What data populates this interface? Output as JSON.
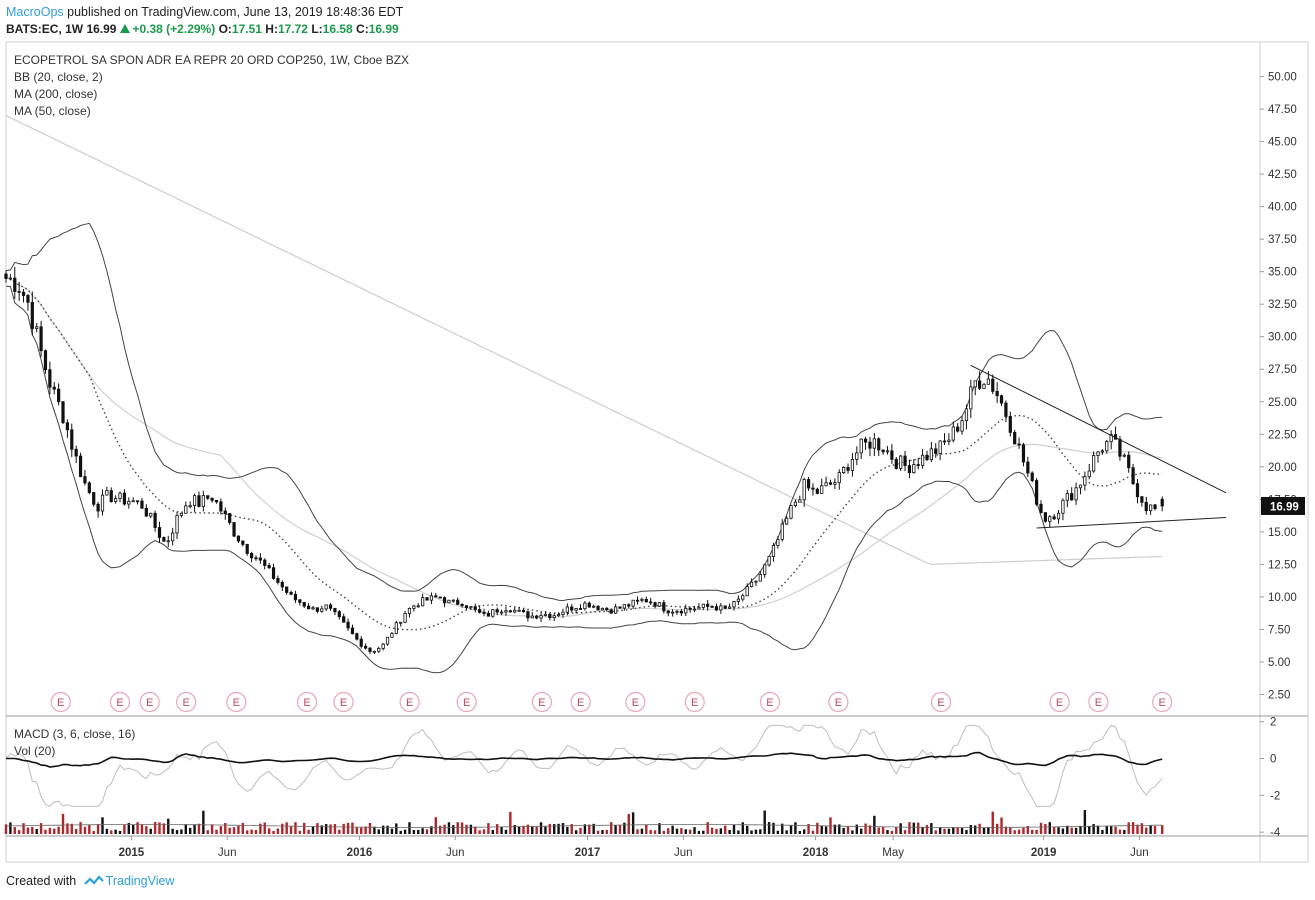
{
  "header": {
    "publisher": "MacroOps",
    "published_text": " published on TradingView.com, June 13, 2019 18:48:36 EDT"
  },
  "quote": {
    "symbol": "BATS:EC, 1W",
    "last": "16.99",
    "change": "+0.38 (+2.29%)",
    "open_label": "O:",
    "open": "17.51",
    "high_label": "H:",
    "high": "17.72",
    "low_label": "L:",
    "low": "16.58",
    "close_label": "C:",
    "close": "16.99",
    "up_color": "#1c9a4c"
  },
  "legend": {
    "title": "ECOPETROL SA SPON ADR EA REPR 20 ORD COP250, 1W, Cboe BZX",
    "bb": "BB (20, close, 2)",
    "ma200": "MA (200, close)",
    "ma50": "MA (50, close)",
    "macd": "MACD (3, 6, close, 16)",
    "vol": "Vol (20)"
  },
  "footer": {
    "created_with": "Created with",
    "brand": "TradingView"
  },
  "chart_data": {
    "type": "candlestick",
    "price_axis": {
      "ticks": [
        "50.00",
        "47.50",
        "45.00",
        "42.50",
        "40.00",
        "37.50",
        "35.00",
        "32.50",
        "30.00",
        "27.50",
        "25.00",
        "22.50",
        "20.00",
        "17.50",
        "15.00",
        "12.50",
        "10.00",
        "7.50",
        "5.00",
        "2.50"
      ],
      "ylim": [
        1.0,
        52.5
      ],
      "last_price_label": "16.99"
    },
    "macd_axis": {
      "ticks": [
        "2",
        "0",
        "-2",
        "-4"
      ],
      "ylim": [
        -4.1,
        2.2
      ]
    },
    "x_axis": {
      "labels": [
        {
          "text": "2015",
          "t": 2015.0
        },
        {
          "text": "Jun",
          "t": 2015.42
        },
        {
          "text": "2016",
          "t": 2016.0
        },
        {
          "text": "Jun",
          "t": 2016.42
        },
        {
          "text": "2017",
          "t": 2017.0
        },
        {
          "text": "Jun",
          "t": 2017.42
        },
        {
          "text": "2018",
          "t": 2018.0
        },
        {
          "text": "May",
          "t": 2018.34
        },
        {
          "text": "2019",
          "t": 2019.0
        },
        {
          "text": "Jun",
          "t": 2019.42
        }
      ],
      "range": [
        2014.45,
        2019.94
      ]
    },
    "price_series": [
      [
        2014.45,
        34.5
      ],
      [
        2014.5,
        34.2
      ],
      [
        2014.55,
        32.5
      ],
      [
        2014.6,
        29.0
      ],
      [
        2014.65,
        26.0
      ],
      [
        2014.7,
        24.0
      ],
      [
        2014.75,
        21.0
      ],
      [
        2014.8,
        18.5
      ],
      [
        2014.85,
        17.0
      ],
      [
        2014.9,
        17.8
      ],
      [
        2014.95,
        17.5
      ],
      [
        2015.0,
        17.4
      ],
      [
        2015.05,
        17.0
      ],
      [
        2015.1,
        15.5
      ],
      [
        2015.15,
        14.0
      ],
      [
        2015.2,
        16.0
      ],
      [
        2015.25,
        17.5
      ],
      [
        2015.3,
        17.2
      ],
      [
        2015.35,
        17.8
      ],
      [
        2015.4,
        16.5
      ],
      [
        2015.45,
        15.0
      ],
      [
        2015.5,
        13.8
      ],
      [
        2015.55,
        13.0
      ],
      [
        2015.6,
        12.0
      ],
      [
        2015.65,
        11.0
      ],
      [
        2015.7,
        10.0
      ],
      [
        2015.75,
        9.5
      ],
      [
        2015.8,
        9.0
      ],
      [
        2015.85,
        9.3
      ],
      [
        2015.9,
        8.5
      ],
      [
        2015.95,
        7.5
      ],
      [
        2016.0,
        6.5
      ],
      [
        2016.05,
        5.8
      ],
      [
        2016.1,
        6.2
      ],
      [
        2016.15,
        7.5
      ],
      [
        2016.2,
        8.8
      ],
      [
        2016.25,
        9.5
      ],
      [
        2016.3,
        9.8
      ],
      [
        2016.35,
        10.0
      ],
      [
        2016.4,
        9.5
      ],
      [
        2016.45,
        9.6
      ],
      [
        2016.5,
        9.0
      ],
      [
        2016.55,
        8.5
      ],
      [
        2016.6,
        9.0
      ],
      [
        2016.65,
        9.2
      ],
      [
        2016.7,
        8.8
      ],
      [
        2016.75,
        8.5
      ],
      [
        2016.8,
        8.7
      ],
      [
        2016.85,
        8.6
      ],
      [
        2016.9,
        9.0
      ],
      [
        2016.95,
        9.3
      ],
      [
        2017.0,
        9.5
      ],
      [
        2017.05,
        9.2
      ],
      [
        2017.1,
        9.0
      ],
      [
        2017.15,
        9.2
      ],
      [
        2017.2,
        9.5
      ],
      [
        2017.25,
        9.8
      ],
      [
        2017.3,
        9.5
      ],
      [
        2017.35,
        9.0
      ],
      [
        2017.4,
        9.0
      ],
      [
        2017.45,
        9.1
      ],
      [
        2017.5,
        9.2
      ],
      [
        2017.55,
        9.3
      ],
      [
        2017.6,
        9.0
      ],
      [
        2017.65,
        9.5
      ],
      [
        2017.7,
        10.5
      ],
      [
        2017.75,
        11.5
      ],
      [
        2017.8,
        13.0
      ],
      [
        2017.85,
        15.0
      ],
      [
        2017.9,
        17.0
      ],
      [
        2017.95,
        18.5
      ],
      [
        2018.0,
        18.0
      ],
      [
        2018.05,
        18.5
      ],
      [
        2018.1,
        19.0
      ],
      [
        2018.15,
        20.5
      ],
      [
        2018.2,
        21.5
      ],
      [
        2018.25,
        22.0
      ],
      [
        2018.3,
        21.5
      ],
      [
        2018.35,
        20.5
      ],
      [
        2018.4,
        20.0
      ],
      [
        2018.45,
        20.5
      ],
      [
        2018.5,
        21.0
      ],
      [
        2018.55,
        21.5
      ],
      [
        2018.6,
        22.5
      ],
      [
        2018.65,
        24.0
      ],
      [
        2018.7,
        26.5
      ],
      [
        2018.75,
        27.0
      ],
      [
        2018.8,
        25.5
      ],
      [
        2018.85,
        23.5
      ],
      [
        2018.9,
        21.0
      ],
      [
        2018.95,
        18.5
      ],
      [
        2019.0,
        16.0
      ],
      [
        2019.05,
        16.5
      ],
      [
        2019.1,
        17.5
      ],
      [
        2019.15,
        18.5
      ],
      [
        2019.2,
        20.0
      ],
      [
        2019.25,
        21.5
      ],
      [
        2019.3,
        22.0
      ],
      [
        2019.35,
        20.5
      ],
      [
        2019.4,
        18.5
      ],
      [
        2019.45,
        17.0
      ],
      [
        2019.5,
        16.6
      ],
      [
        2019.52,
        16.99
      ]
    ],
    "annotations": {
      "trendline_upper": [
        [
          2018.68,
          27.8
        ],
        [
          2019.8,
          18.0
        ]
      ],
      "trendline_lower": [
        [
          2018.97,
          15.3
        ],
        [
          2019.8,
          16.1
        ]
      ],
      "earnings_marker_label": "E",
      "earnings_dates": [
        2014.69,
        2014.95,
        2015.08,
        2015.24,
        2015.46,
        2015.77,
        2015.93,
        2016.22,
        2016.47,
        2016.8,
        2016.97,
        2017.21,
        2017.47,
        2017.8,
        2018.1,
        2018.55,
        2019.07,
        2019.24,
        2019.52
      ]
    },
    "colors": {
      "candle": "#111111",
      "volume_up": "#111111",
      "volume_down": "#b0262b",
      "bb": "#444444",
      "ma200": "#cccccc",
      "ma50": "#cfcfcf",
      "macd_line": "#111111",
      "signal_line": "#bdbdbd",
      "earnings": "#e8a7b4",
      "earnings_text": "#c2495f"
    }
  }
}
